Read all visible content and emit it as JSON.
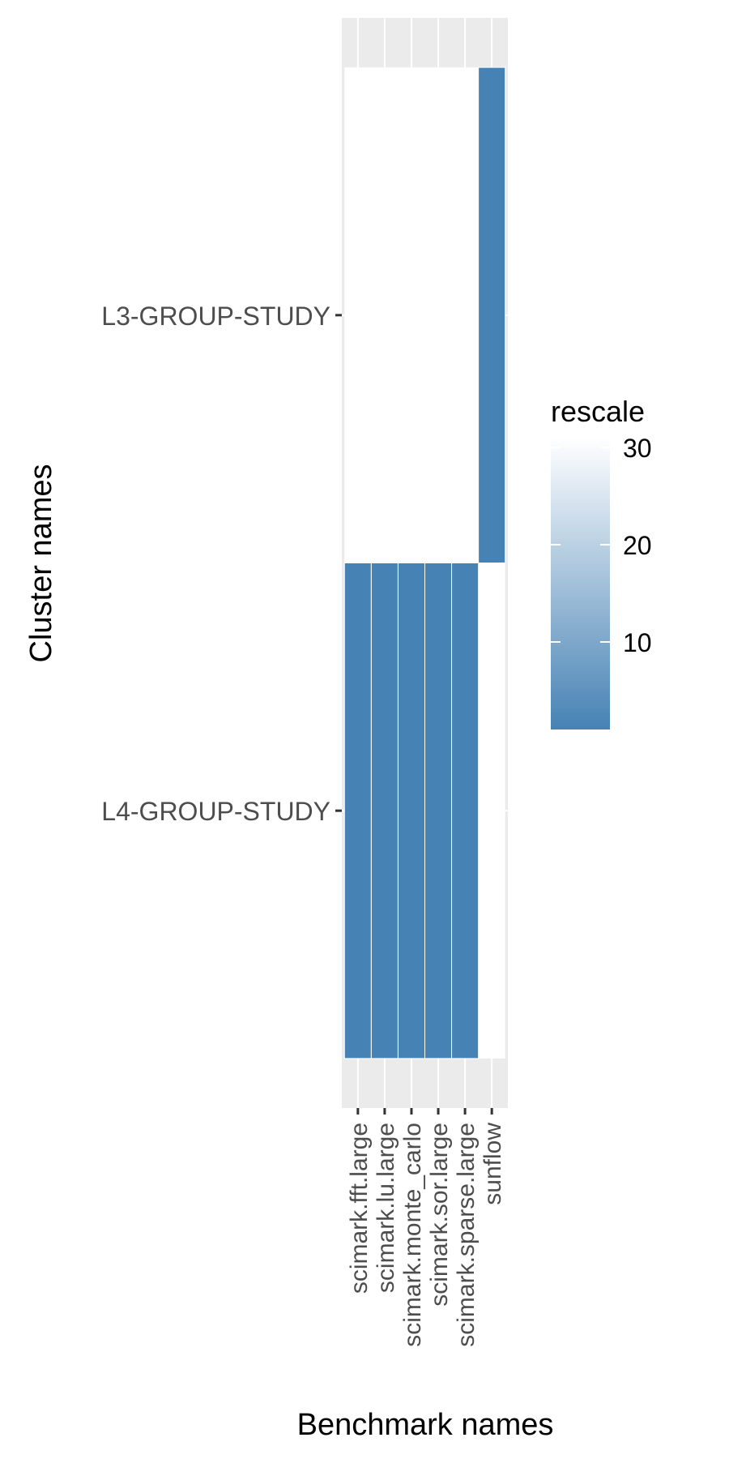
{
  "chart_data": {
    "type": "heatmap",
    "xlabel": "Benchmark names",
    "ylabel": "Cluster names",
    "x_categories": [
      "scimark.fft.large",
      "scimark.lu.large",
      "scimark.monte_carlo",
      "scimark.sor.large",
      "scimark.sparse.large",
      "sunflow"
    ],
    "y_categories": [
      "L4-GROUP-STUDY",
      "L3-GROUP-STUDY"
    ],
    "cells": [
      {
        "x": "scimark.fft.large",
        "y": "L4-GROUP-STUDY",
        "value": 1
      },
      {
        "x": "scimark.lu.large",
        "y": "L4-GROUP-STUDY",
        "value": 1
      },
      {
        "x": "scimark.monte_carlo",
        "y": "L4-GROUP-STUDY",
        "value": 1
      },
      {
        "x": "scimark.sor.large",
        "y": "L4-GROUP-STUDY",
        "value": 1
      },
      {
        "x": "scimark.sparse.large",
        "y": "L4-GROUP-STUDY",
        "value": 1
      },
      {
        "x": "sunflow",
        "y": "L3-GROUP-STUDY",
        "value": 1
      }
    ],
    "legend": {
      "title": "rescale",
      "ticks": [
        10,
        20,
        30
      ],
      "tick_labels": [
        "10",
        "20",
        "30"
      ],
      "range": [
        1,
        31
      ],
      "low_color": "#4682b4",
      "high_color": "#ffffff"
    },
    "grid": true,
    "panel_color": "#ebebeb",
    "legend_position": "right"
  }
}
